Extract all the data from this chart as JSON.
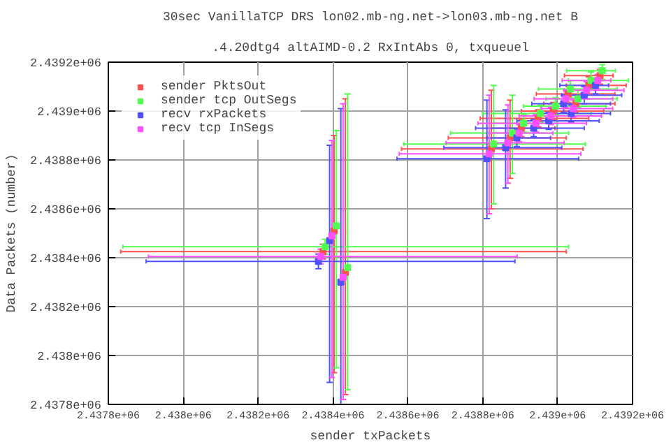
{
  "chart_data": {
    "type": "scatter",
    "title": "30sec VanillaTCP DRS lon02.mb-ng.net->lon03.mb-ng.net B",
    "subtitle": ".4.20dtg4 altAIMD-0.2 RxIntAbs 0, txqueuel",
    "xlabel": "sender txPackets",
    "ylabel": "Data Packets (number)",
    "xlim": [
      2437800,
      2439200
    ],
    "ylim": [
      2437800,
      2439200
    ],
    "xticks": [
      {
        "value": 2437800,
        "label": "2.4378e+06"
      },
      {
        "value": 2438000,
        "label": "2.438e+06"
      },
      {
        "value": 2438200,
        "label": "2.4382e+06"
      },
      {
        "value": 2438400,
        "label": "2.4384e+06"
      },
      {
        "value": 2438600,
        "label": "2.4386e+06"
      },
      {
        "value": 2438800,
        "label": "2.4388e+06"
      },
      {
        "value": 2439000,
        "label": "2.439e+06"
      },
      {
        "value": 2439200,
        "label": "2.4392e+06"
      }
    ],
    "yticks": [
      {
        "value": 2437800,
        "label": "2.4378e+06"
      },
      {
        "value": 2438000,
        "label": "2.438e+06"
      },
      {
        "value": 2438200,
        "label": "2.4382e+06"
      },
      {
        "value": 2438400,
        "label": "2.4384e+06"
      },
      {
        "value": 2438600,
        "label": "2.4386e+06"
      },
      {
        "value": 2438800,
        "label": "2.4388e+06"
      },
      {
        "value": 2439000,
        "label": "2.439e+06"
      },
      {
        "value": 2439200,
        "label": "2.4392e+06"
      }
    ],
    "grid": true,
    "legend": "top left",
    "marker": "square",
    "series": [
      {
        "name": "sender PktsOut",
        "color": "#ff5050",
        "x": [
          2438373,
          2438403,
          2438433,
          2438823,
          2438873,
          2438948,
          2438988,
          2439048,
          2439083,
          2439113,
          2439028,
          2438903
        ],
        "values": [
          2438425,
          2438510,
          2438340,
          2438845,
          2438890,
          2438970,
          2439000,
          2439030,
          2439105,
          2439145,
          2439070,
          2438930
        ],
        "xerrors": [
          [
            2437833,
            2439023
          ],
          null,
          null,
          [
            2438583,
            2439068
          ],
          [
            2438708,
            2439023
          ],
          [
            2438793,
            2439083
          ],
          [
            2438903,
            2439123
          ],
          [
            2438963,
            2439153
          ],
          [
            2439023,
            2439183
          ],
          [
            2439018,
            2439148
          ],
          [
            2438943,
            2439153
          ],
          [
            2438823,
            2438993
          ]
        ],
        "errors": [
          [
            2438395,
            2438455
          ],
          [
            2437930,
            2438900
          ],
          [
            2437840,
            2439050
          ],
          [
            2438600,
            2439085
          ],
          [
            2438725,
            2439045
          ],
          [
            2438935,
            2439005
          ],
          [
            2438965,
            2439035
          ],
          [
            2438995,
            2439065
          ],
          [
            2439070,
            2439140
          ],
          [
            2439110,
            2439170
          ],
          [
            2439035,
            2439105
          ],
          [
            2438895,
            2438965
          ]
        ]
      },
      {
        "name": "sender tcp OutSegs",
        "color": "#50ff50",
        "x": [
          2438379,
          2438409,
          2438439,
          2438829,
          2438879,
          2438954,
          2438994,
          2439054,
          2439089,
          2439119,
          2439034,
          2438909
        ],
        "values": [
          2438445,
          2438530,
          2438360,
          2438865,
          2438910,
          2438990,
          2439020,
          2439050,
          2439125,
          2439165,
          2439090,
          2438950
        ],
        "xerrors": [
          [
            2437839,
            2439029
          ],
          null,
          null,
          [
            2438589,
            2439074
          ],
          [
            2438714,
            2439029
          ],
          [
            2438799,
            2439089
          ],
          [
            2438909,
            2439129
          ],
          [
            2438969,
            2439159
          ],
          [
            2439029,
            2439189
          ],
          [
            2439024,
            2439154
          ],
          [
            2438949,
            2439159
          ],
          [
            2438829,
            2438999
          ]
        ],
        "errors": [
          [
            2438415,
            2438475
          ],
          [
            2437950,
            2438920
          ],
          [
            2437860,
            2439070
          ],
          [
            2438620,
            2439105
          ],
          [
            2438745,
            2439065
          ],
          [
            2438955,
            2439025
          ],
          [
            2438985,
            2439055
          ],
          [
            2439015,
            2439085
          ],
          [
            2439090,
            2439160
          ],
          [
            2439130,
            2439190
          ],
          [
            2439055,
            2439125
          ],
          [
            2438915,
            2438985
          ]
        ]
      },
      {
        "name": "recv rxPackets",
        "color": "#5050ff",
        "x": [
          2438361,
          2438391,
          2438421,
          2438811,
          2438861,
          2438936,
          2438976,
          2439036,
          2439071,
          2439101,
          2439016,
          2438891
        ],
        "values": [
          2438385,
          2438470,
          2438300,
          2438805,
          2438850,
          2438930,
          2438960,
          2438990,
          2439065,
          2439105,
          2439030,
          2438890
        ],
        "xerrors": [
          [
            2437901,
            2438886
          ],
          null,
          null,
          [
            2438571,
            2439056
          ],
          [
            2438696,
            2439011
          ],
          [
            2438781,
            2439071
          ],
          [
            2438891,
            2439111
          ],
          [
            2438951,
            2439141
          ],
          [
            2439011,
            2439171
          ],
          [
            2439006,
            2439136
          ],
          [
            2438931,
            2439141
          ],
          [
            2438811,
            2438981
          ]
        ],
        "errors": [
          [
            2438355,
            2438415
          ],
          [
            2437890,
            2438860
          ],
          [
            2437800,
            2439010
          ],
          [
            2438560,
            2439045
          ],
          [
            2438685,
            2439005
          ],
          [
            2438895,
            2438965
          ],
          [
            2438925,
            2438995
          ],
          [
            2438955,
            2439025
          ],
          [
            2439030,
            2439100
          ],
          [
            2439070,
            2439130
          ],
          [
            2438995,
            2439065
          ],
          [
            2438855,
            2438925
          ]
        ]
      },
      {
        "name": "recv tcp InSegs",
        "color": "#ff50ff",
        "x": [
          2438367,
          2438397,
          2438427,
          2438817,
          2438867,
          2438942,
          2438982,
          2439042,
          2439077,
          2439107,
          2439022,
          2438897
        ],
        "values": [
          2438405,
          2438490,
          2438320,
          2438825,
          2438870,
          2438950,
          2438980,
          2439010,
          2439085,
          2439125,
          2439050,
          2438910
        ],
        "xerrors": [
          [
            2437907,
            2438892
          ],
          null,
          null,
          [
            2438577,
            2439062
          ],
          [
            2438702,
            2439017
          ],
          [
            2438787,
            2439077
          ],
          [
            2438897,
            2439117
          ],
          [
            2438957,
            2439147
          ],
          [
            2439017,
            2439177
          ],
          [
            2439012,
            2439142
          ],
          [
            2438937,
            2439147
          ],
          [
            2438817,
            2438987
          ]
        ],
        "errors": [
          [
            2438375,
            2438435
          ],
          [
            2437910,
            2438880
          ],
          [
            2437820,
            2439030
          ],
          [
            2438580,
            2439065
          ],
          [
            2438705,
            2439025
          ],
          [
            2438915,
            2438985
          ],
          [
            2438945,
            2439015
          ],
          [
            2438975,
            2439045
          ],
          [
            2439050,
            2439120
          ],
          [
            2439090,
            2439150
          ],
          [
            2439015,
            2439085
          ],
          [
            2438875,
            2438945
          ]
        ]
      }
    ]
  }
}
